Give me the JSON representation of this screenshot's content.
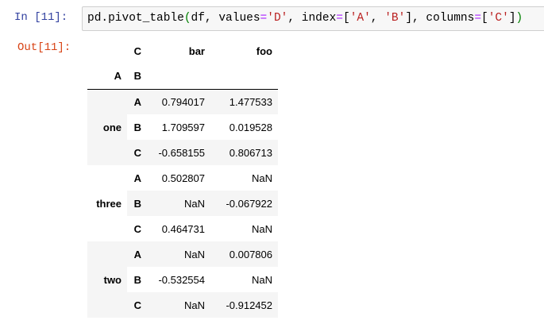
{
  "cell": {
    "in_prompt": "In  [11]:",
    "out_prompt": "Out[11]:",
    "code": {
      "p1": "pd.pivot_table",
      "p2": "(",
      "p3": "df, values",
      "p4": "=",
      "p5": "'D'",
      "p6": ", index",
      "p7": "=",
      "p8": "[",
      "p9": "'A'",
      "p10": ", ",
      "p11": "'B'",
      "p12": "], columns",
      "p13": "=",
      "p14": "[",
      "p15": "'C'",
      "p16": "]",
      "p17": ")"
    }
  },
  "table": {
    "columns_name": "C",
    "columns": [
      "bar",
      "foo"
    ],
    "index_names": [
      "A",
      "B"
    ],
    "groups": [
      {
        "label": "one",
        "rows": [
          [
            "A",
            "0.794017",
            "1.477533"
          ],
          [
            "B",
            "1.709597",
            "0.019528"
          ],
          [
            "C",
            "-0.658155",
            "0.806713"
          ]
        ]
      },
      {
        "label": "three",
        "rows": [
          [
            "A",
            "0.502807",
            "NaN"
          ],
          [
            "B",
            "NaN",
            "-0.067922"
          ],
          [
            "C",
            "0.464731",
            "NaN"
          ]
        ]
      },
      {
        "label": "two",
        "rows": [
          [
            "A",
            "NaN",
            "0.007806"
          ],
          [
            "B",
            "-0.532554",
            "NaN"
          ],
          [
            "C",
            "NaN",
            "-0.912452"
          ]
        ]
      }
    ]
  }
}
